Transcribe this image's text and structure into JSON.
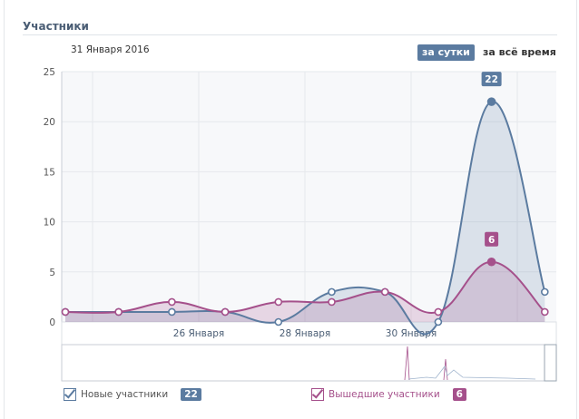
{
  "header": {
    "title": "Участники",
    "date": "31 Января 2016",
    "btn_day": "за сутки",
    "btn_all": "за всё время"
  },
  "colors": {
    "new": "#5b7ba0",
    "left": "#a5508b",
    "accent": "#5b7ba0"
  },
  "legend": [
    {
      "label": "Новые участники",
      "value": "22",
      "checked": true
    },
    {
      "label": "Вышедшие участники",
      "value": "6",
      "checked": true
    }
  ],
  "chart_data": {
    "type": "area",
    "ylim": [
      0,
      25
    ],
    "yticks": [
      "0",
      "5",
      "10",
      "15",
      "20",
      "25"
    ],
    "xticks": [
      "26 Января",
      "28 Января",
      "30 Января"
    ],
    "grid": true,
    "series": [
      {
        "name": "Новые участники",
        "values": [
          1,
          1,
          1,
          1,
          0,
          3,
          3,
          0,
          22,
          3
        ],
        "label": "22"
      },
      {
        "name": "Вышедшие участники",
        "values": [
          1,
          1,
          2,
          1,
          2,
          2,
          3,
          1,
          6,
          1
        ],
        "label": "6"
      }
    ]
  }
}
